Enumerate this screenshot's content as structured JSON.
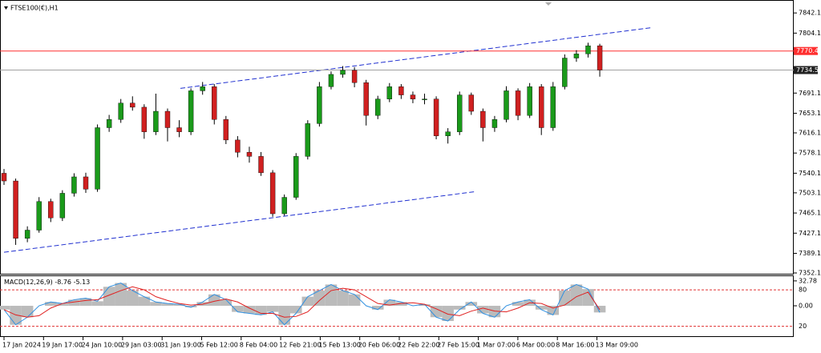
{
  "chart_data": {
    "type": "candlestick",
    "title": "FTSE100(€),H1",
    "x_labels": [
      "17 Jan 2024",
      "19 Jan 17:00",
      "24 Jan 10:00",
      "29 Jan 03:00",
      "31 Jan 19:00",
      "5 Feb 12:00",
      "8 Feb 04:00",
      "12 Feb 21:00",
      "15 Feb 13:00",
      "20 Feb 06:00",
      "22 Feb 22:00",
      "27 Feb 15:00",
      "1 Mar 07:00",
      "6 Mar 00:00",
      "8 Mar 16:00",
      "13 Mar 09:00"
    ],
    "open": [
      7540.0,
      7525.5,
      7417.3,
      7432.8,
      7486.8,
      7455.9,
      7502.3,
      7533.2,
      7510.0,
      7625.9,
      7641.3,
      7672.2,
      7664.5,
      7618.1,
      7656.8,
      7625.9,
      7618.1,
      7695.4,
      7703.1,
      7641.3,
      7602.7,
      7579.5,
      7571.8,
      7540.9,
      7463.7,
      7494.6,
      7571.8,
      7633.6,
      7703.1,
      7726.3,
      7734.0,
      7710.8,
      7649.0,
      7679.9,
      7703.1,
      7687.6,
      7679.9,
      7679.9,
      7610.4,
      7618.1,
      7687.6,
      7656.8,
      7625.9,
      7641.3,
      7695.4,
      7649.0,
      7703.1,
      7625.9,
      7703.1,
      7757.1,
      7764.9,
      7780.3
    ],
    "high": [
      7548,
      7530,
      7440,
      7495,
      7492,
      7508,
      7540,
      7541,
      7632,
      7650,
      7680,
      7685,
      7670,
      7690,
      7662,
      7640,
      7700,
      7712,
      7708,
      7648,
      7610,
      7590,
      7580,
      7546,
      7500,
      7578,
      7640,
      7712,
      7732,
      7742,
      7740,
      7716,
      7686,
      7710,
      7708,
      7694,
      7690,
      7685,
      7625,
      7694,
      7692,
      7662,
      7648,
      7704,
      7700,
      7710,
      7708,
      7712,
      7764,
      7772,
      7786,
      7784
    ],
    "low": [
      7518,
      7405,
      7410,
      7428,
      7448,
      7450,
      7496,
      7503,
      7505,
      7618,
      7635,
      7658,
      7605,
      7612,
      7600,
      7608,
      7612,
      7688,
      7632,
      7595,
      7570,
      7560,
      7535,
      7458,
      7460,
      7490,
      7566,
      7628,
      7698,
      7720,
      7702,
      7630,
      7642,
      7674,
      7680,
      7672,
      7670,
      7604,
      7596,
      7612,
      7650,
      7600,
      7618,
      7636,
      7640,
      7644,
      7612,
      7620,
      7698,
      7750,
      7758,
      7722
    ],
    "close": [
      7525.5,
      7417.3,
      7432.8,
      7486.8,
      7455.9,
      7502.3,
      7533.2,
      7510.0,
      7625.9,
      7641.3,
      7672.2,
      7664.5,
      7618.1,
      7656.8,
      7625.9,
      7618.1,
      7695.4,
      7703.1,
      7641.3,
      7602.7,
      7579.5,
      7571.8,
      7540.9,
      7463.7,
      7494.6,
      7571.8,
      7633.6,
      7703.1,
      7726.3,
      7734.0,
      7710.8,
      7649.0,
      7679.9,
      7703.1,
      7687.6,
      7679.9,
      7679.9,
      7610.4,
      7618.1,
      7687.6,
      7656.8,
      7625.9,
      7641.3,
      7695.4,
      7649.0,
      7703.1,
      7625.9,
      7703.1,
      7757.1,
      7764.9,
      7780.3,
      7734.5
    ],
    "up_color": "#1a9a1a",
    "down_color": "#d02020",
    "ylim": [
      7350.6,
      7865.0
    ],
    "yticks": [
      7842.1,
      7804.1,
      7691.1,
      7653.1,
      7616.1,
      7578.1,
      7540.1,
      7503.1,
      7465.1,
      7427.1,
      7389.1,
      7352.1
    ],
    "price_lines": [
      {
        "value": 7770.4,
        "color": "#ff3030"
      },
      {
        "value": 7734.5,
        "color": "#a0a0a0"
      }
    ],
    "trendlines": [
      {
        "from": 7700.0,
        "to": 7814.3,
        "color": "#2030d0"
      },
      {
        "from": 7391.1,
        "to": 7505.4,
        "color": "#2030d0"
      }
    ],
    "macd": {
      "name": "MACD(12,26,9)",
      "ylim": [
        -40,
        39
      ],
      "yticks": [
        {
          "value": 32.78,
          "label": "32.78"
        },
        {
          "value": 0,
          "label": "0.00"
        }
      ],
      "levels": [
        21,
        -27
      ],
      "level_labels": [
        "80",
        "20"
      ],
      "main": [
        -5,
        -25,
        -15,
        0,
        5,
        3,
        8,
        10,
        6,
        25,
        30,
        20,
        12,
        5,
        3,
        2,
        -2,
        5,
        15,
        8,
        -8,
        -10,
        -12,
        -8,
        -25,
        -10,
        12,
        20,
        28,
        20,
        15,
        0,
        -5,
        8,
        5,
        0,
        2,
        -15,
        -20,
        -5,
        5,
        -10,
        -15,
        0,
        5,
        8,
        -5,
        -12,
        20,
        28,
        22,
        -8.76
      ],
      "signal": [
        -5,
        -12,
        -15,
        -13,
        -3,
        3,
        5,
        7,
        8,
        14,
        20,
        25,
        21,
        12,
        7,
        3,
        1,
        2,
        6,
        9,
        5,
        -3,
        -10,
        -10,
        -15,
        -14,
        -8,
        7,
        20,
        23,
        21,
        12,
        3,
        1,
        3,
        4,
        2,
        -4,
        -11,
        -13,
        -7,
        -3,
        -7,
        -8,
        -3,
        4,
        3,
        -3,
        1,
        12,
        18,
        -5.13
      ]
    }
  }
}
